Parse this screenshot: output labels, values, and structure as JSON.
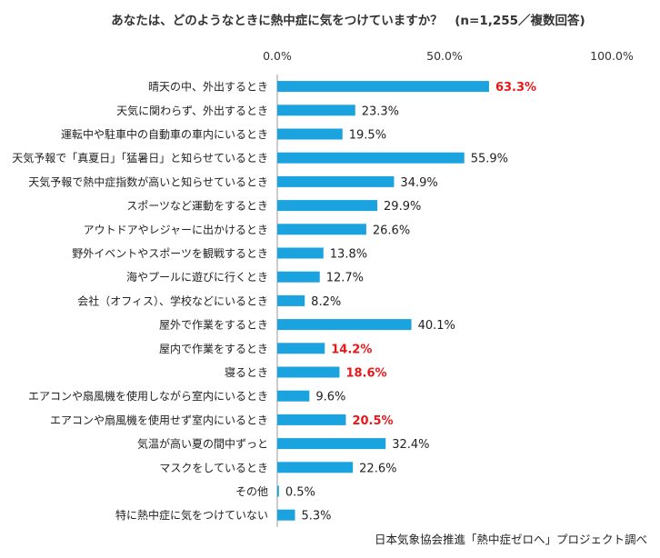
{
  "chart_data": {
    "type": "bar",
    "orientation": "horizontal",
    "title": "あなたは、どのようなときに熱中症に気をつけていますか？　(n=1,255／複数回答)",
    "source": "日本気象協会推進「熱中症ゼロへ」プロジェクト調べ",
    "xlim": [
      0,
      100
    ],
    "ticks": [
      "0.0%",
      "50.0%",
      "100.0%"
    ],
    "tick_values": [
      0,
      50,
      100
    ],
    "bar_color": "#1aa3df",
    "highlight_color": "#e8171a",
    "grid": false,
    "categories": [
      "晴天の中、外出するとき",
      "天気に関わらず、外出するとき",
      "運転中や駐車中の自動車の車内にいるとき",
      "天気予報で「真夏日」「猛暑日」と知らせているとき",
      "天気予報で熱中症指数が高いと知らせているとき",
      "スポーツなど運動をするとき",
      "アウトドアやレジャーに出かけるとき",
      "野外イベントやスポーツを観戦するとき",
      "海やプールに遊びに行くとき",
      "会社（オフィス）、学校などにいるとき",
      "屋外で作業をするとき",
      "屋内で作業をするとき",
      "寝るとき",
      "エアコンや扇風機を使用しながら室内にいるとき",
      "エアコンや扇風機を使用せず室内にいるとき",
      "気温が高い夏の間中ずっと",
      "マスクをしているとき",
      "その他",
      "特に熱中症に気をつけていない"
    ],
    "values": [
      63.3,
      23.3,
      19.5,
      55.9,
      34.9,
      29.9,
      26.6,
      13.8,
      12.7,
      8.2,
      40.1,
      14.2,
      18.6,
      9.6,
      20.5,
      32.4,
      22.6,
      0.5,
      5.3
    ],
    "value_labels": [
      "63.3%",
      "23.3%",
      "19.5%",
      "55.9%",
      "34.9%",
      "29.9%",
      "26.6%",
      "13.8%",
      "12.7%",
      "8.2%",
      "40.1%",
      "14.2%",
      "18.6%",
      "9.6%",
      "20.5%",
      "32.4%",
      "22.6%",
      "0.5%",
      "5.3%"
    ],
    "highlighted": [
      true,
      false,
      false,
      false,
      false,
      false,
      false,
      false,
      false,
      false,
      false,
      true,
      true,
      false,
      true,
      false,
      false,
      false,
      false
    ]
  }
}
